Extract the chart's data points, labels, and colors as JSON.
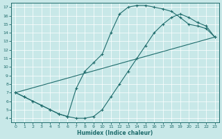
{
  "xlabel": "Humidex (Indice chaleur)",
  "background_color": "#c8e8e8",
  "grid_color": "#b0d8d8",
  "line_color": "#1e6b6b",
  "xlim": [
    -0.5,
    23.5
  ],
  "ylim": [
    3.5,
    17.5
  ],
  "xticks": [
    0,
    1,
    2,
    3,
    4,
    5,
    6,
    7,
    8,
    9,
    10,
    11,
    12,
    13,
    14,
    15,
    16,
    17,
    18,
    19,
    20,
    21,
    22,
    23
  ],
  "yticks": [
    4,
    5,
    6,
    7,
    8,
    9,
    10,
    11,
    12,
    13,
    14,
    15,
    16,
    17
  ],
  "curve_upper": {
    "x": [
      0,
      1,
      2,
      3,
      4,
      5,
      6,
      7,
      8,
      9,
      10,
      11,
      12,
      13,
      14,
      15,
      16,
      17,
      18,
      19,
      20,
      21,
      22,
      23
    ],
    "y": [
      7.0,
      6.5,
      6.0,
      5.5,
      5.0,
      4.5,
      4.2,
      7.5,
      9.5,
      10.5,
      11.5,
      14.0,
      16.2,
      17.0,
      17.2,
      17.2,
      17.0,
      16.8,
      16.5,
      15.8,
      15.0,
      14.8,
      14.5,
      13.5
    ]
  },
  "curve_lower": {
    "x": [
      0,
      1,
      2,
      3,
      4,
      5,
      6,
      7,
      8,
      9,
      10,
      11,
      12,
      13,
      14,
      15,
      16,
      17,
      18,
      19,
      20,
      21,
      22,
      23
    ],
    "y": [
      7.0,
      6.5,
      6.0,
      5.5,
      5.0,
      4.5,
      4.2,
      4.0,
      4.0,
      4.2,
      5.0,
      6.5,
      8.0,
      9.5,
      11.0,
      12.5,
      14.0,
      15.0,
      15.8,
      16.2,
      15.8,
      15.2,
      14.8,
      13.5
    ]
  },
  "curve_diagonal": {
    "x": [
      0,
      23
    ],
    "y": [
      7.0,
      13.5
    ]
  }
}
